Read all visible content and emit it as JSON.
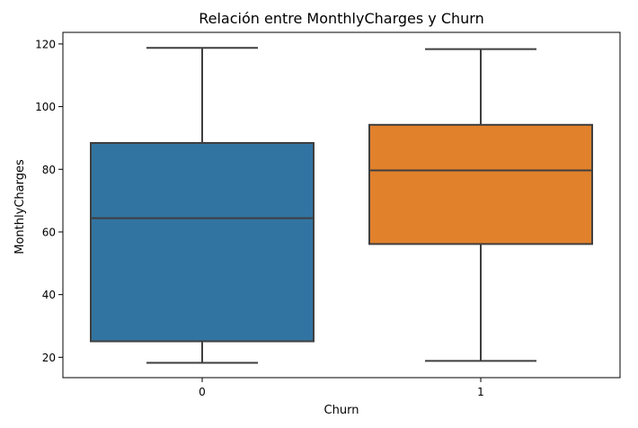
{
  "chart_data": {
    "type": "box",
    "title": "Relación entre MonthlyCharges y Churn",
    "xlabel": "Churn",
    "ylabel": "MonthlyCharges",
    "ylim": [
      13.5,
      123.7
    ],
    "yticks": [
      20,
      40,
      60,
      80,
      100,
      120
    ],
    "categories": [
      "0",
      "1"
    ],
    "boxes": [
      {
        "category": "0",
        "whisker_low": 18.25,
        "q1": 25.1,
        "median": 64.4,
        "q3": 88.4,
        "whisker_high": 118.75,
        "color": "#3274a1"
      },
      {
        "category": "1",
        "whisker_low": 18.85,
        "q1": 56.15,
        "median": 79.65,
        "q3": 94.2,
        "whisker_high": 118.35,
        "color": "#e1812c"
      }
    ],
    "line_color": "#3f3f3f"
  }
}
